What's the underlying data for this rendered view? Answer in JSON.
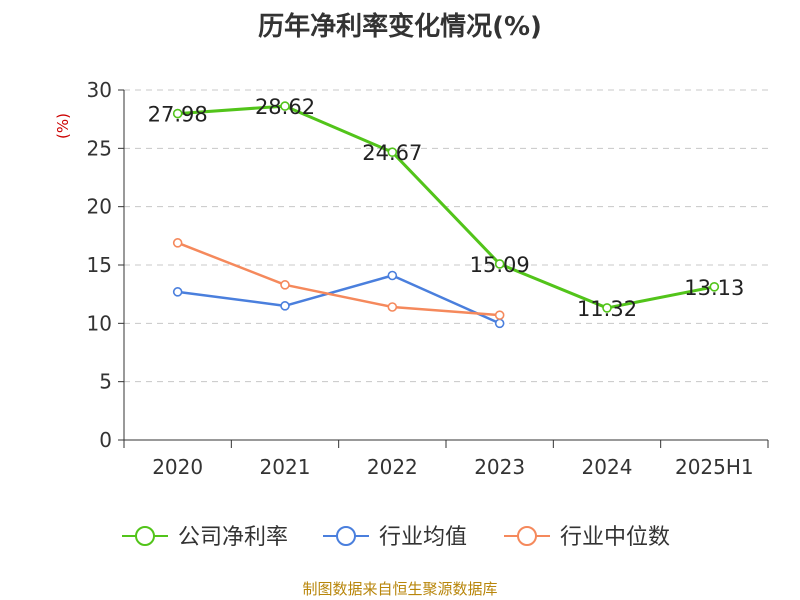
{
  "chart_data": {
    "type": "line",
    "title": "历年净利率变化情况(%)",
    "ylabel": "(%)",
    "categories": [
      "2020",
      "2021",
      "2022",
      "2023",
      "2024",
      "2025H1"
    ],
    "ylim": [
      0,
      30
    ],
    "yticks": [
      0,
      5,
      10,
      15,
      20,
      25,
      30
    ],
    "grid": true,
    "legend_position": "bottom",
    "series": [
      {
        "name": "公司净利率",
        "color": "#52c41a",
        "values": [
          27.98,
          28.62,
          24.67,
          15.09,
          11.32,
          13.13
        ],
        "labels": true
      },
      {
        "name": "行业均值",
        "color": "#4a7fdd",
        "values": [
          12.7,
          11.5,
          14.1,
          10.0,
          null,
          null
        ],
        "labels": false
      },
      {
        "name": "行业中位数",
        "color": "#f5895c",
        "values": [
          16.9,
          13.3,
          11.4,
          10.7,
          null,
          null
        ],
        "labels": false
      }
    ]
  },
  "footer": "制图数据来自恒生聚源数据库"
}
